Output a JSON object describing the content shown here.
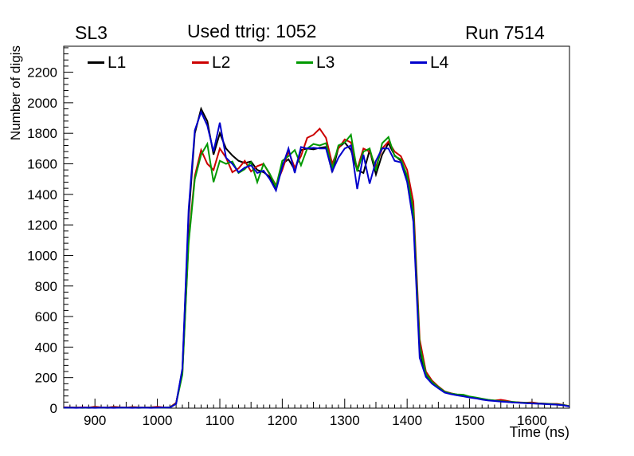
{
  "titles": {
    "superlayer": "SL3",
    "ttrig": "Used ttrig: 1052",
    "run": "Run 7514"
  },
  "chart_data": {
    "type": "line",
    "title": "Used ttrig: 1052",
    "xlabel": "Time (ns)",
    "ylabel": "Number of digis",
    "xlim": [
      850,
      1660
    ],
    "ylim": [
      0,
      2370
    ],
    "xticks": [
      900,
      1000,
      1100,
      1200,
      1300,
      1400,
      1500,
      1600
    ],
    "yticks": [
      0,
      200,
      400,
      600,
      800,
      1000,
      1200,
      1400,
      1600,
      1800,
      2000,
      2200
    ],
    "x_minor_step": 10,
    "y_minor_step": 40,
    "grid": false,
    "legend_position": "top-inside",
    "frame_color": "#000000",
    "background_color": "#ffffff",
    "x_start": 850,
    "x_step": 10,
    "series": [
      {
        "name": "L1",
        "color": "#000000",
        "values": [
          3,
          4,
          3,
          3,
          2,
          3,
          3,
          2,
          3,
          4,
          3,
          3,
          2,
          3,
          3,
          4,
          3,
          4,
          30,
          250,
          1250,
          1800,
          1960,
          1880,
          1660,
          1800,
          1700,
          1655,
          1620,
          1605,
          1615,
          1560,
          1545,
          1515,
          1430,
          1600,
          1630,
          1560,
          1690,
          1700,
          1695,
          1705,
          1710,
          1545,
          1705,
          1740,
          1690,
          1560,
          1540,
          1690,
          1530,
          1660,
          1735,
          1655,
          1620,
          1500,
          1250,
          380,
          215,
          165,
          135,
          105,
          95,
          86,
          80,
          72,
          66,
          58,
          52,
          49,
          45,
          41,
          38,
          36,
          34,
          32,
          30,
          28,
          26,
          24,
          20,
          12
        ]
      },
      {
        "name": "L2",
        "color": "#cc0000",
        "values": [
          6,
          5,
          4,
          6,
          4,
          10,
          5,
          4,
          9,
          6,
          4,
          8,
          5,
          4,
          6,
          9,
          5,
          6,
          35,
          230,
          1100,
          1520,
          1690,
          1600,
          1560,
          1700,
          1640,
          1545,
          1570,
          1620,
          1550,
          1585,
          1600,
          1530,
          1460,
          1560,
          1680,
          1575,
          1650,
          1770,
          1790,
          1830,
          1770,
          1600,
          1700,
          1760,
          1740,
          1565,
          1700,
          1680,
          1580,
          1700,
          1745,
          1680,
          1650,
          1560,
          1350,
          450,
          240,
          180,
          142,
          110,
          98,
          88,
          82,
          74,
          68,
          60,
          54,
          50,
          55,
          48,
          40,
          38,
          36,
          38,
          32,
          30,
          28,
          28,
          22,
          14
        ]
      },
      {
        "name": "L3",
        "color": "#009900",
        "values": [
          3,
          3,
          3,
          2,
          3,
          4,
          3,
          3,
          4,
          3,
          3,
          4,
          3,
          3,
          4,
          3,
          3,
          5,
          30,
          220,
          1080,
          1500,
          1660,
          1730,
          1480,
          1620,
          1600,
          1615,
          1540,
          1565,
          1610,
          1480,
          1600,
          1535,
          1450,
          1620,
          1650,
          1690,
          1590,
          1700,
          1730,
          1720,
          1735,
          1570,
          1720,
          1740,
          1790,
          1550,
          1680,
          1700,
          1555,
          1735,
          1775,
          1650,
          1630,
          1520,
          1290,
          410,
          225,
          172,
          138,
          108,
          96,
          90,
          88,
          76,
          70,
          62,
          55,
          50,
          46,
          43,
          40,
          37,
          35,
          33,
          31,
          29,
          27,
          25,
          21,
          13
        ]
      },
      {
        "name": "L4",
        "color": "#0000cc",
        "values": [
          3,
          3,
          2,
          3,
          3,
          2,
          3,
          3,
          2,
          3,
          3,
          2,
          3,
          3,
          2,
          3,
          4,
          4,
          28,
          260,
          1300,
          1820,
          1940,
          1850,
          1680,
          1870,
          1640,
          1600,
          1545,
          1575,
          1590,
          1540,
          1555,
          1500,
          1425,
          1580,
          1700,
          1540,
          1710,
          1700,
          1705,
          1700,
          1700,
          1550,
          1640,
          1700,
          1720,
          1435,
          1660,
          1470,
          1620,
          1700,
          1700,
          1620,
          1610,
          1480,
          1220,
          330,
          205,
          160,
          130,
          102,
          92,
          84,
          78,
          70,
          64,
          56,
          50,
          47,
          43,
          40,
          37,
          35,
          33,
          31,
          29,
          27,
          25,
          23,
          19,
          11
        ]
      }
    ]
  }
}
